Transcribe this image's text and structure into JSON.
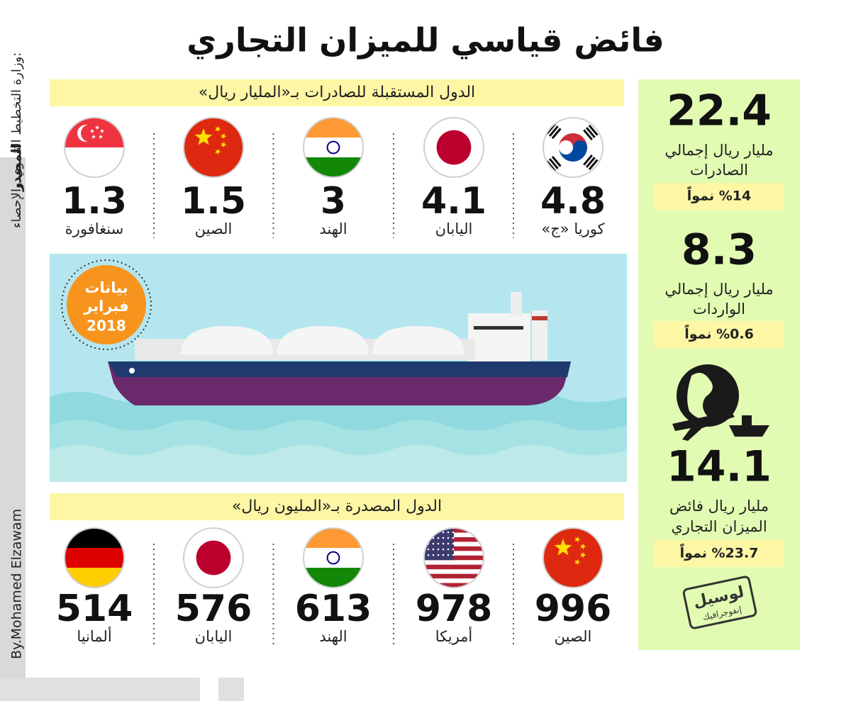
{
  "title": "فائض قياسي للميزان التجاري",
  "exports": {
    "heading": "الدول المستقبلة للصادرات بـ«المليار ريال»",
    "items": [
      {
        "country": "كوريا «ج»",
        "value": 4.8
      },
      {
        "country": "اليابان",
        "value": 4.1
      },
      {
        "country": "الهند",
        "value": 3
      },
      {
        "country": "الصين",
        "value": 1.5
      },
      {
        "country": "سنغافورة",
        "value": 1.3
      }
    ]
  },
  "badge": {
    "lines": [
      "بيانات",
      "فبراير",
      "2018"
    ]
  },
  "imports": {
    "heading": "الدول المصدرة بـ«المليون ريال»",
    "items": [
      {
        "country": "الصين",
        "value": 996
      },
      {
        "country": "أمريكا",
        "value": 978
      },
      {
        "country": "الهند",
        "value": 613
      },
      {
        "country": "اليابان",
        "value": 576
      },
      {
        "country": "ألمانيا",
        "value": 514
      }
    ]
  },
  "summary": [
    {
      "value": 22.4,
      "label_lines": [
        "مليار ريال إجمالي",
        "الصادرات"
      ],
      "growth": "%14 نمواً"
    },
    {
      "value": 8.3,
      "label_lines": [
        "مليار ريال إجمالي",
        "الواردات"
      ],
      "growth": "%0.6 نمواً"
    },
    {
      "value": 14.1,
      "label_lines": [
        "مليار ريال فائض",
        "الميزان التجاري"
      ],
      "growth": "%23.7 نمواً"
    }
  ],
  "source": {
    "label": "المصدر",
    "text": ":وزارة التخطيط التنموي والإحصاء"
  },
  "credit": "By.Mohamed Elzawam",
  "logo": {
    "name": "لوسيل",
    "sub": "إنفوجرافيك"
  }
}
